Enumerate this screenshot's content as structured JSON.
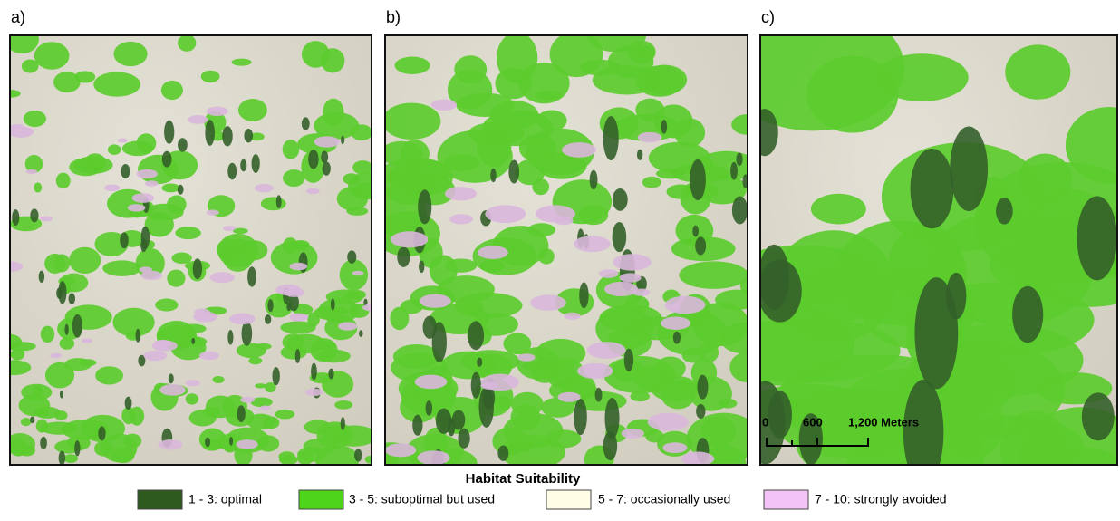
{
  "panels": [
    {
      "label": "a)"
    },
    {
      "label": "b)"
    },
    {
      "label": "c)"
    }
  ],
  "scale_bar": {
    "labels": [
      "0",
      "600",
      "1,200 Meters"
    ]
  },
  "legend": {
    "title": "Habitat Suitability",
    "items": [
      {
        "label": "1 - 3: optimal",
        "color": "#2f5a1e"
      },
      {
        "label": "3 - 5: suboptimal but used",
        "color": "#4fd41c"
      },
      {
        "label": "5 - 7: occasionally used",
        "color": "#fffde6"
      },
      {
        "label": "7 - 10: strongly avoided",
        "color": "#f3c3f5"
      }
    ]
  }
}
